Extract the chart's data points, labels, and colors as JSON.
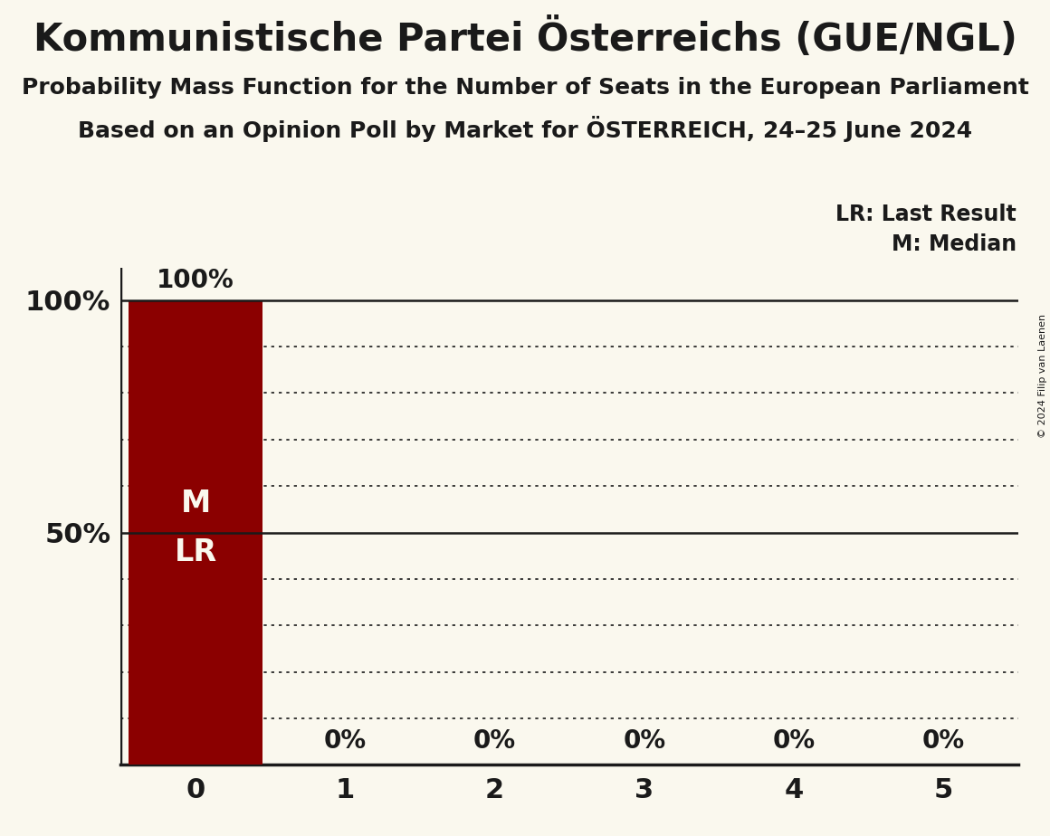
{
  "title": "Kommunistische Partei Österreichs (GUE/NGL)",
  "subtitle1": "Probability Mass Function for the Number of Seats in the European Parliament",
  "subtitle2": "Based on an Opinion Poll by Market for ÖSTERREICH, 24–25 June 2024",
  "copyright": "© 2024 Filip van Laenen",
  "categories": [
    0,
    1,
    2,
    3,
    4,
    5
  ],
  "values": [
    100,
    0,
    0,
    0,
    0,
    0
  ],
  "bar_color": "#8b0000",
  "background_color": "#faf8ee",
  "bar_label_color": "#faf8ee",
  "axis_color": "#1a1a1a",
  "text_color": "#1a1a1a",
  "bar_value_labels": [
    "100%",
    "0%",
    "0%",
    "0%",
    "0%",
    "0%"
  ],
  "legend_lr": "LR: Last Result",
  "legend_m": "M: Median",
  "solid_line_y": [
    100,
    50
  ],
  "dotted_line_y": [
    90,
    80,
    70,
    60,
    40,
    30,
    20,
    10
  ],
  "ylim": [
    0,
    107
  ],
  "title_fontsize": 30,
  "subtitle_fontsize": 18,
  "bar_label_fontsize": 20,
  "inner_label_fontsize": 24,
  "tick_fontsize": 22,
  "legend_fontsize": 17,
  "copyright_fontsize": 8
}
